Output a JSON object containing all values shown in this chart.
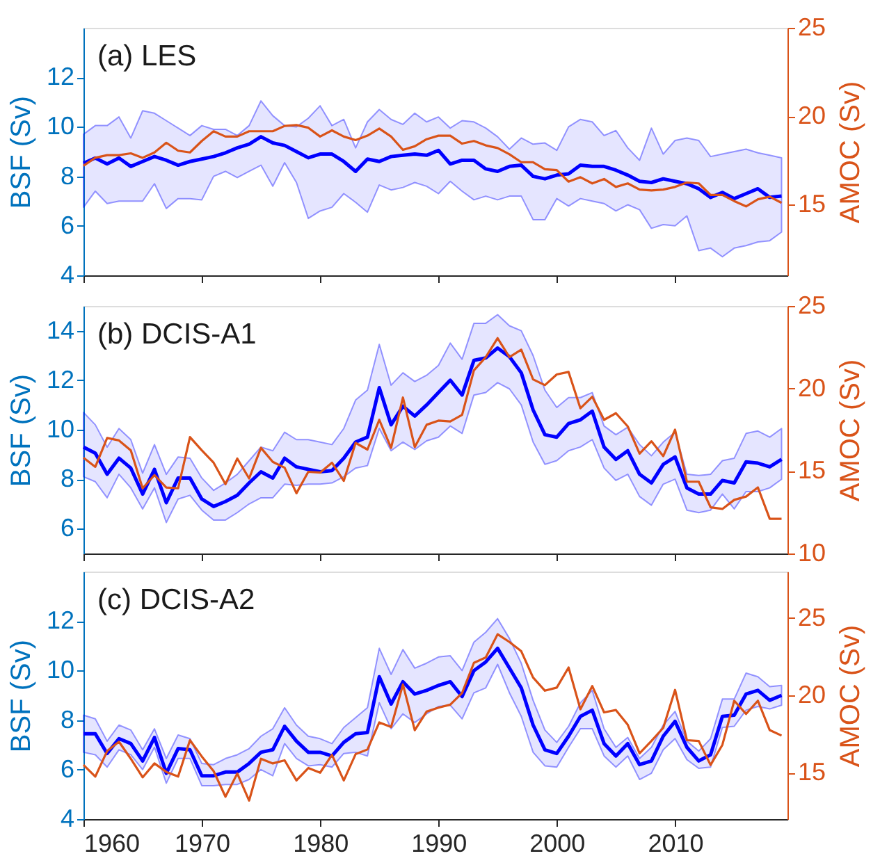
{
  "chart_data": [
    {
      "type": "line",
      "title": "(a) LES",
      "ylabel": "BSF (Sv)",
      "y2label": "AMOC (Sv)",
      "grid": false,
      "tick_labels": "y",
      "x": [
        1960,
        1961,
        1962,
        1963,
        1964,
        1965,
        1966,
        1967,
        1968,
        1969,
        1970,
        1971,
        1972,
        1973,
        1974,
        1975,
        1976,
        1977,
        1978,
        1979,
        1980,
        1981,
        1982,
        1983,
        1984,
        1985,
        1986,
        1987,
        1988,
        1989,
        1990,
        1991,
        1992,
        1993,
        1994,
        1995,
        1996,
        1997,
        1998,
        1999,
        2000,
        2001,
        2002,
        2003,
        2004,
        2005,
        2006,
        2007,
        2008,
        2009,
        2010,
        2011,
        2012,
        2013,
        2014,
        2015,
        2016,
        2017,
        2018,
        2019
      ],
      "xlim": [
        1960,
        2019.5
      ],
      "xticks": [
        1960,
        1970,
        1980,
        1990,
        2000,
        2010
      ],
      "ylim": [
        4,
        14
      ],
      "yticks": [
        4,
        6,
        8,
        10,
        12
      ],
      "y2lim": [
        11,
        25
      ],
      "y2ticks": [
        15,
        20,
        25
      ],
      "series": [
        {
          "color": "#0000ff",
          "values": [
            8.53,
            8.74,
            8.5,
            8.74,
            8.4,
            8.6,
            8.8,
            8.65,
            8.45,
            8.6,
            8.7,
            8.8,
            8.95,
            9.15,
            9.3,
            9.6,
            9.35,
            9.25,
            9.0,
            8.75,
            8.9,
            8.9,
            8.6,
            8.2,
            8.7,
            8.6,
            8.8,
            8.85,
            8.9,
            8.85,
            9.05,
            8.5,
            8.65,
            8.65,
            8.3,
            8.2,
            8.4,
            8.45,
            8.0,
            7.9,
            8.05,
            8.1,
            8.45,
            8.4,
            8.4,
            8.25,
            8.05,
            7.8,
            7.75,
            7.9,
            7.8,
            7.7,
            7.5,
            7.15,
            7.35,
            7.1,
            7.3,
            7.5,
            7.15,
            7.2
          ],
          "upper": [
            9.7,
            10.05,
            10.05,
            10.4,
            9.55,
            10.65,
            10.55,
            10.25,
            9.95,
            9.65,
            10.05,
            9.9,
            9.9,
            9.65,
            10.05,
            11.05,
            10.45,
            10.05,
            10.0,
            10.35,
            10.85,
            10.05,
            10.3,
            9.15,
            10.2,
            10.7,
            10.3,
            10.1,
            10.55,
            10.2,
            10.4,
            9.95,
            10.25,
            10.2,
            9.95,
            9.6,
            9.1,
            9.55,
            9.3,
            9.35,
            9.05,
            10.0,
            10.3,
            10.2,
            9.65,
            9.85,
            9.15,
            8.65,
            9.95,
            8.9,
            9.45,
            9.55,
            9.45,
            8.8,
            8.9,
            9.0,
            9.1,
            8.95,
            8.85,
            8.75
          ],
          "lower": [
            6.75,
            7.4,
            6.9,
            7.0,
            7.0,
            7.0,
            7.7,
            6.7,
            7.1,
            7.1,
            7.05,
            8.0,
            8.2,
            7.95,
            8.2,
            8.45,
            7.6,
            8.55,
            7.75,
            6.3,
            6.6,
            6.75,
            7.3,
            6.95,
            6.55,
            7.65,
            7.45,
            7.55,
            7.75,
            7.6,
            7.3,
            7.8,
            7.4,
            7.05,
            7.2,
            7.05,
            7.2,
            7.2,
            6.25,
            6.25,
            7.1,
            6.8,
            7.1,
            7.0,
            6.9,
            6.6,
            6.85,
            6.65,
            5.9,
            6.05,
            6.0,
            6.4,
            5.0,
            5.1,
            4.75,
            5.1,
            5.2,
            5.35,
            5.4,
            5.75
          ]
        },
        {
          "color": "#d95319",
          "axis": "y2",
          "values": [
            17.2,
            17.65,
            17.8,
            17.8,
            17.9,
            17.65,
            17.95,
            18.5,
            18.05,
            17.95,
            18.6,
            19.15,
            18.85,
            18.85,
            19.15,
            19.15,
            19.15,
            19.45,
            19.5,
            19.35,
            18.85,
            19.2,
            18.85,
            18.65,
            18.9,
            19.3,
            18.85,
            18.1,
            18.3,
            18.7,
            18.9,
            18.9,
            18.45,
            18.6,
            18.35,
            18.2,
            17.85,
            17.4,
            17.4,
            17.0,
            16.95,
            16.3,
            16.55,
            16.2,
            16.45,
            16.0,
            16.2,
            15.85,
            15.8,
            15.85,
            16.0,
            16.25,
            16.2,
            15.55,
            15.55,
            15.2,
            14.9,
            15.3,
            15.45,
            15.1
          ]
        }
      ]
    },
    {
      "type": "line",
      "title": "(b) DCIS-A1",
      "ylabel": "BSF (Sv)",
      "y2label": "AMOC (Sv)",
      "grid": false,
      "tick_labels": "y",
      "x": [
        1960,
        1961,
        1962,
        1963,
        1964,
        1965,
        1966,
        1967,
        1968,
        1969,
        1970,
        1971,
        1972,
        1973,
        1974,
        1975,
        1976,
        1977,
        1978,
        1979,
        1980,
        1981,
        1982,
        1983,
        1984,
        1985,
        1986,
        1987,
        1988,
        1989,
        1990,
        1991,
        1992,
        1993,
        1994,
        1995,
        1996,
        1997,
        1998,
        1999,
        2000,
        2001,
        2002,
        2003,
        2004,
        2005,
        2006,
        2007,
        2008,
        2009,
        2010,
        2011,
        2012,
        2013,
        2014,
        2015,
        2016,
        2017,
        2018,
        2019
      ],
      "xlim": [
        1960,
        2019.5
      ],
      "xticks": [
        1960,
        1970,
        1980,
        1990,
        2000,
        2010
      ],
      "ylim": [
        5,
        15
      ],
      "yticks": [
        6,
        8,
        10,
        12,
        14
      ],
      "y2lim": [
        10,
        25
      ],
      "y2ticks": [
        10,
        15,
        20,
        25
      ],
      "series": [
        {
          "color": "#0000ff",
          "values": [
            9.3,
            9.05,
            8.2,
            8.85,
            8.45,
            7.4,
            8.4,
            7.05,
            8.05,
            8.05,
            7.2,
            6.9,
            7.1,
            7.35,
            7.85,
            8.3,
            8.05,
            8.85,
            8.5,
            8.4,
            8.3,
            8.35,
            8.85,
            9.5,
            9.7,
            11.7,
            10.2,
            10.95,
            10.55,
            11.0,
            11.5,
            12.0,
            11.4,
            12.8,
            12.9,
            13.3,
            12.95,
            12.3,
            10.8,
            9.8,
            9.7,
            10.25,
            10.4,
            10.75,
            9.3,
            8.8,
            9.15,
            8.2,
            7.85,
            8.6,
            8.9,
            7.65,
            7.4,
            7.4,
            7.95,
            7.85,
            8.7,
            8.65,
            8.5,
            8.8
          ],
          "upper": [
            10.7,
            10.2,
            9.3,
            10.05,
            9.6,
            8.25,
            9.4,
            8.2,
            8.9,
            8.85,
            8.05,
            7.55,
            7.85,
            8.2,
            8.75,
            9.3,
            9.15,
            9.9,
            9.6,
            9.6,
            9.5,
            9.4,
            10.05,
            11.2,
            11.6,
            13.45,
            11.8,
            12.3,
            11.95,
            12.2,
            12.6,
            13.5,
            12.85,
            14.3,
            14.3,
            14.65,
            14.2,
            14.0,
            13.0,
            11.6,
            10.9,
            11.3,
            11.3,
            11.5,
            10.15,
            9.8,
            10.1,
            9.4,
            8.95,
            9.5,
            9.9,
            8.2,
            8.15,
            8.2,
            8.75,
            8.85,
            9.85,
            9.95,
            9.7,
            10.05
          ],
          "lower": [
            8.1,
            7.9,
            7.25,
            8.2,
            7.65,
            6.8,
            7.65,
            6.25,
            7.2,
            7.35,
            6.75,
            6.35,
            6.35,
            6.65,
            7.0,
            7.25,
            7.25,
            7.8,
            7.75,
            7.8,
            7.8,
            7.85,
            8.1,
            8.45,
            8.55,
            10.05,
            9.15,
            9.5,
            9.2,
            9.55,
            9.7,
            10.15,
            9.85,
            11.4,
            11.5,
            11.9,
            11.65,
            11.0,
            9.5,
            8.6,
            8.75,
            9.15,
            9.3,
            9.6,
            8.45,
            7.95,
            8.2,
            7.3,
            6.95,
            7.8,
            8.0,
            6.75,
            6.65,
            6.75,
            7.4,
            6.8,
            7.5,
            7.5,
            7.65,
            8.0
          ]
        },
        {
          "color": "#d95319",
          "axis": "y2",
          "values": [
            15.8,
            15.25,
            17.0,
            16.85,
            16.25,
            13.95,
            14.75,
            14.0,
            13.95,
            17.05,
            16.25,
            15.5,
            14.2,
            15.75,
            14.55,
            16.4,
            15.55,
            15.2,
            13.65,
            14.95,
            14.9,
            15.5,
            14.4,
            16.7,
            16.3,
            18.1,
            16.4,
            19.45,
            16.45,
            17.8,
            18.05,
            18.0,
            18.4,
            21.1,
            21.9,
            23.05,
            21.9,
            22.35,
            20.55,
            20.2,
            20.85,
            21.0,
            18.8,
            19.5,
            18.1,
            18.5,
            17.7,
            16.05,
            16.8,
            15.9,
            17.5,
            14.35,
            14.35,
            12.8,
            12.7,
            13.25,
            13.45,
            14.0,
            12.1,
            12.1
          ]
        }
      ]
    },
    {
      "type": "line",
      "title": "(c) DCIS-A2",
      "ylabel": "BSF (Sv)",
      "y2label": "AMOC (Sv)",
      "grid": false,
      "x": [
        1960,
        1961,
        1962,
        1963,
        1964,
        1965,
        1966,
        1967,
        1968,
        1969,
        1970,
        1971,
        1972,
        1973,
        1974,
        1975,
        1976,
        1977,
        1978,
        1979,
        1980,
        1981,
        1982,
        1983,
        1984,
        1985,
        1986,
        1987,
        1988,
        1989,
        1990,
        1991,
        1992,
        1993,
        1994,
        1995,
        1996,
        1997,
        1998,
        1999,
        2000,
        2001,
        2002,
        2003,
        2004,
        2005,
        2006,
        2007,
        2008,
        2009,
        2010,
        2011,
        2012,
        2013,
        2014,
        2015,
        2016,
        2017,
        2018,
        2019
      ],
      "xlim": [
        1960,
        2019.5
      ],
      "xticks": [
        1960,
        1970,
        1980,
        1990,
        2000,
        2010
      ],
      "ylim": [
        4,
        14
      ],
      "yticks": [
        4,
        6,
        8,
        10,
        12
      ],
      "y2lim": [
        12,
        28
      ],
      "y2ticks": [
        15,
        20,
        25
      ],
      "series": [
        {
          "color": "#0000ff",
          "values": [
            7.45,
            7.45,
            6.65,
            7.25,
            7.05,
            6.35,
            7.3,
            5.85,
            6.85,
            6.8,
            5.75,
            5.75,
            5.9,
            5.9,
            6.25,
            6.7,
            6.8,
            7.75,
            7.15,
            6.7,
            6.7,
            6.55,
            7.1,
            7.45,
            7.5,
            9.75,
            8.65,
            9.55,
            9.05,
            9.2,
            9.4,
            9.55,
            8.95,
            10.0,
            10.35,
            10.9,
            10.1,
            9.3,
            7.8,
            6.8,
            6.65,
            7.35,
            8.15,
            8.4,
            7.05,
            6.55,
            7.05,
            6.2,
            6.35,
            7.35,
            7.95,
            6.9,
            6.35,
            6.6,
            8.15,
            8.2,
            9.05,
            9.2,
            8.8,
            9.0
          ],
          "upper": [
            8.2,
            8.05,
            7.15,
            7.8,
            7.6,
            6.8,
            7.65,
            6.45,
            7.4,
            7.25,
            6.25,
            6.2,
            6.45,
            6.6,
            6.85,
            7.35,
            7.65,
            8.5,
            7.8,
            7.35,
            7.25,
            7.05,
            7.7,
            8.1,
            8.5,
            10.9,
            9.85,
            10.85,
            10.1,
            10.3,
            10.55,
            10.6,
            10.0,
            11.15,
            11.55,
            12.1,
            11.3,
            10.3,
            8.8,
            7.6,
            7.1,
            7.75,
            8.7,
            9.2,
            7.65,
            6.9,
            7.3,
            6.45,
            6.9,
            7.8,
            8.35,
            7.15,
            6.75,
            7.25,
            8.85,
            8.85,
            9.9,
            9.75,
            9.35,
            9.4
          ],
          "lower": [
            6.7,
            6.6,
            6.1,
            6.8,
            6.6,
            6.0,
            6.9,
            5.45,
            6.45,
            6.45,
            5.35,
            5.35,
            5.4,
            5.4,
            5.6,
            6.0,
            5.75,
            7.05,
            6.45,
            6.15,
            6.2,
            6.1,
            6.65,
            6.7,
            6.55,
            8.7,
            7.65,
            8.25,
            7.9,
            8.25,
            8.55,
            8.6,
            8.05,
            9.1,
            9.3,
            10.25,
            9.1,
            8.15,
            6.7,
            6.15,
            6.1,
            6.9,
            7.65,
            7.65,
            6.55,
            6.1,
            6.55,
            5.6,
            5.85,
            6.8,
            7.25,
            6.4,
            6.05,
            6.1,
            7.7,
            7.75,
            8.4,
            8.55,
            8.45,
            8.6
          ]
        },
        {
          "color": "#d95319",
          "axis": "y2",
          "values": [
            15.5,
            14.75,
            16.4,
            17.0,
            15.9,
            14.7,
            15.6,
            15.05,
            14.75,
            17.1,
            16.05,
            15.1,
            13.45,
            14.95,
            13.2,
            15.9,
            15.6,
            15.8,
            14.5,
            15.3,
            15.0,
            16.15,
            14.5,
            16.2,
            16.5,
            18.25,
            17.95,
            20.7,
            17.75,
            18.95,
            19.2,
            19.4,
            20.15,
            22.1,
            22.45,
            23.95,
            23.45,
            22.85,
            21.15,
            20.3,
            20.5,
            21.8,
            19.1,
            20.6,
            18.9,
            19.05,
            18.1,
            16.25,
            17.05,
            17.9,
            20.35,
            17.1,
            17.05,
            15.5,
            16.8,
            19.65,
            18.8,
            19.65,
            17.75,
            17.4
          ]
        }
      ]
    }
  ]
}
